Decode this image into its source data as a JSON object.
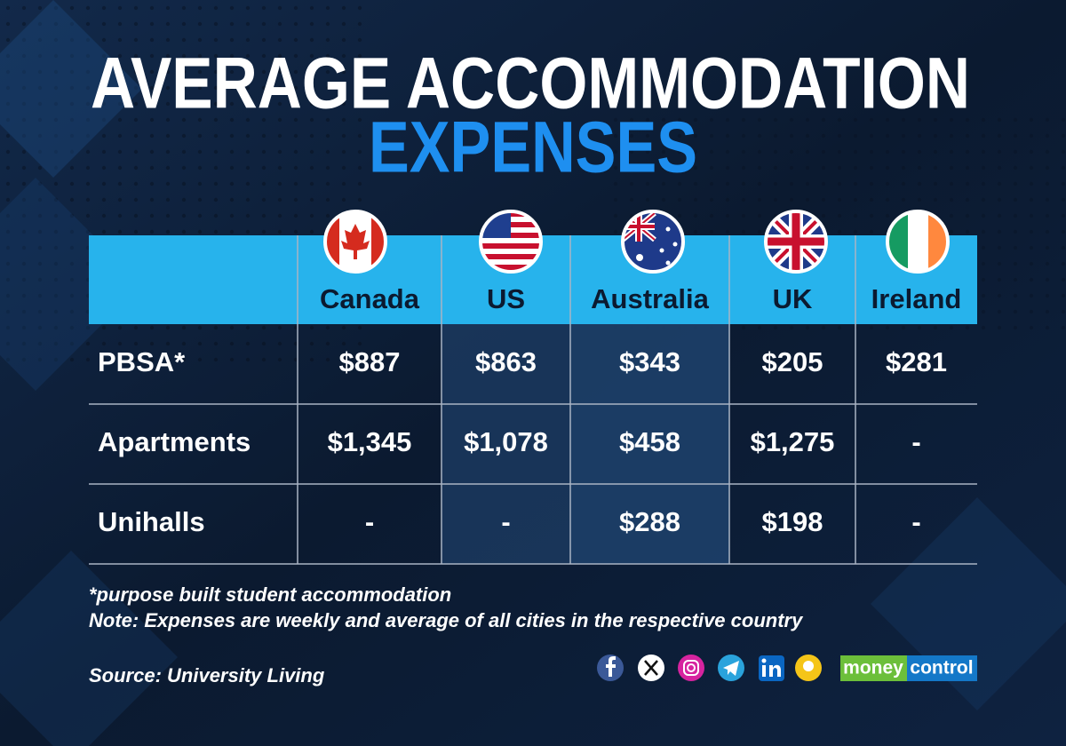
{
  "header": {
    "title_line1": "AVERAGE ACCOMMODATION",
    "title_line2": "EXPENSES"
  },
  "table": {
    "columns": [
      "Canada",
      "US",
      "Australia",
      "UK",
      "Ireland"
    ],
    "rows": [
      {
        "label": "PBSA*",
        "cells": [
          "$887",
          "$863",
          "$343",
          "$205",
          "$281"
        ]
      },
      {
        "label": "Apartments",
        "cells": [
          "$1,345",
          "$1,078",
          "$458",
          "$1,275",
          "-"
        ]
      },
      {
        "label": "Unihalls",
        "cells": [
          "-",
          "-",
          "$288",
          "$198",
          "-"
        ]
      }
    ]
  },
  "footer": {
    "footnote": "*purpose built student accommodation",
    "note": "Note: Expenses are weekly and average of all cities in the respective country",
    "source": "Source: University Living"
  },
  "brand": {
    "parts": [
      "money",
      "control"
    ]
  }
}
